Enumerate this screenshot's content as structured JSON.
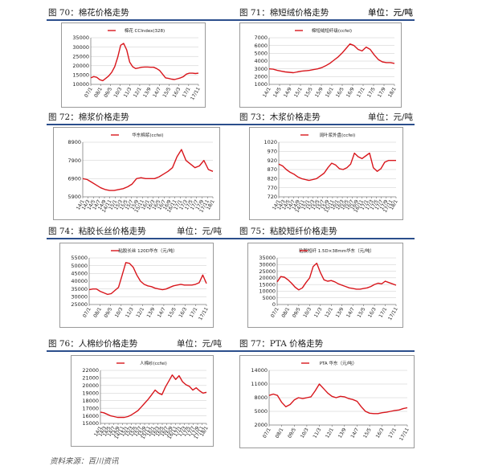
{
  "source": "资料来源：百川资讯",
  "colors": {
    "line": "#d8161c",
    "rule": "#2b4e8c",
    "grid": "#c8c8c8"
  },
  "panels": [
    {
      "figure": "图 70：棉花价格走势",
      "unit": "单位：元/吨",
      "chart_data": {
        "type": "line",
        "title": "棉花 CCIndex(328)",
        "ylim": [
          10000,
          35000
        ],
        "yticks": [
          "35000",
          "30000",
          "25000",
          "20000",
          "15000",
          "10000"
        ],
        "xticks": [
          "07/1",
          "08/1",
          "09/5",
          "10/3",
          "11/3",
          "12/1",
          "13/9",
          "14/7",
          "15/5",
          "16/3",
          "17/1",
          "17/11"
        ],
        "series": [
          {
            "values": [
              13500,
              14200,
              13800,
              12500,
              12000,
              13200,
              14500,
              16500,
              19500,
              24500,
              31000,
              32000,
              28500,
              22000,
              19500,
              18500,
              18800,
              19200,
              19300,
              19300,
              19200,
              19200,
              18500,
              17500,
              15500,
              13500,
              13200,
              12800,
              12600,
              13000,
              13500,
              14200,
              15500,
              16000,
              16000,
              15800,
              16000
            ]
          }
        ]
      }
    },
    {
      "figure": "图 71：棉短绒价格走势",
      "unit": "单位：元/吨",
      "chart_data": {
        "type": "line",
        "title": "棉短绒短纤级(ccfei)",
        "ylim": [
          1000,
          7000
        ],
        "yticks": [
          "7000",
          "6000",
          "5000",
          "4000",
          "3000",
          "2000",
          "1000"
        ],
        "xticks": [
          "14/1",
          "14/5",
          "14/9",
          "15/1",
          "15/5",
          "15/9",
          "16/1",
          "16/5",
          "16/9",
          "17/1",
          "17/5",
          "17/9",
          "18/1"
        ],
        "series": [
          {
            "values": [
              3000,
              2950,
              2800,
              2700,
              2600,
              2550,
              2500,
              2600,
              2700,
              2750,
              2800,
              2900,
              3000,
              3150,
              3400,
              3700,
              4100,
              4500,
              5000,
              5600,
              6200,
              6000,
              5500,
              5300,
              5800,
              5500,
              4800,
              4200,
              3900,
              3800,
              3800,
              3700
            ]
          }
        ]
      }
    },
    {
      "figure": "图 72：棉浆价格走势",
      "unit": "单位：元/吨",
      "chart_data": {
        "type": "line",
        "title": "华东棉浆(ccfei)",
        "ylim": [
          5900,
          8900
        ],
        "yticks": [
          "8900",
          "7900",
          "6900",
          "5900"
        ],
        "xticks": [
          "14/1",
          "14/3",
          "14/5",
          "14/7",
          "14/9",
          "14/11",
          "15/1",
          "15/3",
          "15/5",
          "15/7",
          "15/9",
          "15/11",
          "16/1",
          "16/3",
          "16/5",
          "16/7",
          "16/9",
          "16/11",
          "17/1",
          "17/3",
          "17/5",
          "17/7",
          "17/9",
          "17/11",
          "18/1"
        ],
        "series": [
          {
            "values": [
              6900,
              6850,
              6700,
              6550,
              6400,
              6300,
              6250,
              6250,
              6300,
              6350,
              6450,
              6600,
              6900,
              6950,
              6900,
              6900,
              6900,
              7000,
              7150,
              7300,
              7500,
              8100,
              8500,
              7900,
              7700,
              7500,
              7600,
              7900,
              7400,
              7300
            ]
          }
        ]
      }
    },
    {
      "figure": "图 73：木浆价格走势",
      "unit": "单位：元/吨",
      "chart_data": {
        "type": "line",
        "title": "阔叶浆外盘(ccfei)",
        "ylim": [
          720,
          1020
        ],
        "yticks": [
          "1020",
          "970",
          "920",
          "870",
          "820",
          "770",
          "720"
        ],
        "xticks": [
          "14/1",
          "14/3",
          "14/5",
          "14/7",
          "14/9",
          "14/11",
          "15/1",
          "15/3",
          "15/5",
          "15/7",
          "15/9",
          "15/11",
          "16/1",
          "16/3",
          "16/5",
          "16/7",
          "16/9",
          "16/11",
          "17/1",
          "17/3",
          "17/5",
          "17/7",
          "17/9",
          "17/11",
          "18/1"
        ],
        "series": [
          {
            "values": [
              900,
              890,
              870,
              855,
              845,
              830,
              820,
              815,
              810,
              815,
              820,
              835,
              850,
              880,
              905,
              895,
              875,
              870,
              880,
              900,
              960,
              940,
              930,
              945,
              960,
              880,
              860,
              875,
              910,
              920,
              920,
              920
            ]
          }
        ]
      }
    },
    {
      "figure": "图 74：粘胶长丝价格走势",
      "unit": "单位：元/吨",
      "chart_data": {
        "type": "line",
        "title": "粘胶长丝 120D华东（元/吨）",
        "ylim": [
          25000,
          55000
        ],
        "yticks": [
          "55000",
          "50000",
          "45000",
          "40000",
          "35000",
          "30000",
          "25000"
        ],
        "xticks": [
          "07/1",
          "08/1",
          "09/5",
          "10/3",
          "11/3",
          "12/1",
          "13/9",
          "14/7",
          "15/5",
          "16/3",
          "17/1",
          "17/11"
        ],
        "series": [
          {
            "values": [
              34500,
              35000,
              35000,
              33500,
              32500,
              31500,
              32000,
              34000,
              36000,
              44000,
              52000,
              51500,
              49000,
              44000,
              40000,
              38000,
              37000,
              36500,
              35500,
              35000,
              34500,
              35000,
              36000,
              37000,
              37500,
              38000,
              37500,
              37500,
              37500,
              38000,
              39000,
              44000,
              38500
            ]
          }
        ]
      }
    },
    {
      "figure": "图 75：粘胶短纤价格走势",
      "unit": "单位：元/吨",
      "chart_data": {
        "type": "line",
        "title": "粘胶短纤 1.5D×38mm华东（元/吨）",
        "ylim": [
          0,
          35000
        ],
        "yticks": [
          "35000",
          "30000",
          "25000",
          "20000",
          "15000",
          "10000",
          "5000",
          "0"
        ],
        "xticks": [
          "07/1",
          "08/1",
          "09/5",
          "10/3",
          "11/3",
          "12/1",
          "13/9",
          "14/7",
          "15/5",
          "16/3",
          "17/1",
          "17/11"
        ],
        "series": [
          {
            "values": [
              17000,
              21000,
              20500,
              18500,
              16000,
              13000,
              11000,
              12500,
              16500,
              20000,
              28500,
              31000,
              24000,
              18500,
              17500,
              18000,
              17000,
              15500,
              14500,
              13500,
              12500,
              12000,
              11500,
              11500,
              12000,
              12500,
              13500,
              15000,
              16000,
              15500,
              17500,
              16500,
              15500,
              14500
            ]
          }
        ]
      }
    },
    {
      "figure": "图 76：人棉纱价格走势",
      "unit": "单位：元/吨",
      "chart_data": {
        "type": "line",
        "title": "人棉纱(ccfei)",
        "ylim": [
          15000,
          22000
        ],
        "yticks": [
          "22000",
          "21000",
          "20000",
          "19000",
          "18000",
          "17000",
          "16000",
          "15000"
        ],
        "xticks": [
          "14/1",
          "14/3",
          "14/5",
          "14/7",
          "14/9",
          "14/11",
          "15/1",
          "15/3",
          "15/5",
          "15/7",
          "15/9",
          "15/11",
          "16/1",
          "16/3",
          "16/5",
          "16/7",
          "16/9",
          "16/11",
          "17/1",
          "17/3",
          "17/5",
          "17/7",
          "17/9",
          "17/11",
          "18/1"
        ],
        "series": [
          {
            "values": [
              16500,
              16400,
              16200,
              16000,
              15900,
              15800,
              15800,
              15800,
              15900,
              16100,
              16400,
              16700,
              17200,
              17700,
              18200,
              18800,
              19400,
              19000,
              18800,
              19800,
              20600,
              21400,
              20800,
              21300,
              20500,
              20100,
              19900,
              19400,
              19700,
              19300,
              19000,
              19100
            ]
          }
        ]
      }
    },
    {
      "figure": "图 77：PTA 价格走势",
      "unit": "单位：元/吨",
      "chart_data": {
        "type": "line",
        "title": "PTA 华东（元/吨）",
        "ylim": [
          2000,
          14000
        ],
        "yticks": [
          "14000",
          "11000",
          "8000",
          "5000",
          "2000"
        ],
        "xticks": [
          "07/1",
          "08/1",
          "09/5",
          "10/3",
          "11/3",
          "12/1",
          "13/9",
          "14/7",
          "15/5",
          "16/3",
          "17/1",
          "17/11"
        ],
        "series": [
          {
            "values": [
              8500,
              8800,
              8500,
              7000,
              6000,
              6500,
              7500,
              8000,
              7800,
              8000,
              8200,
              9500,
              11000,
              10000,
              9000,
              8300,
              8000,
              8300,
              8200,
              7800,
              7600,
              7200,
              6000,
              5000,
              4600,
              4500,
              4500,
              4700,
              4800,
              5000,
              5200,
              5300,
              5600,
              5800
            ]
          }
        ]
      }
    }
  ]
}
